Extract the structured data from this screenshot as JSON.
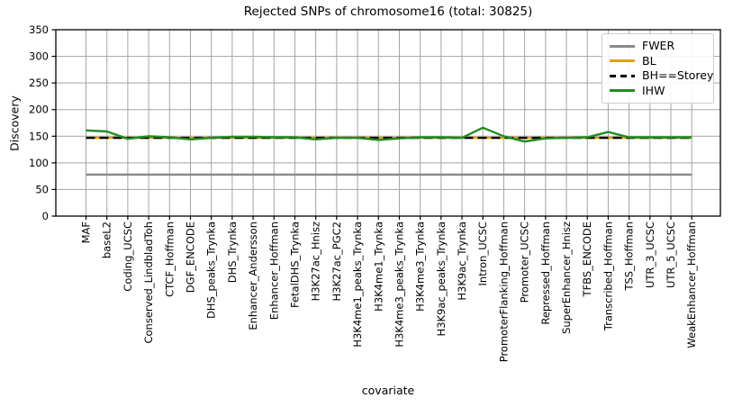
{
  "figure": {
    "background": "#ffffff",
    "grid_color": "#a4a4a4",
    "axis_color": "#000000"
  },
  "chart_data": {
    "type": "line",
    "title": "Rejected SNPs of chromosome16 (total: 30825)",
    "xlabel": "covariate",
    "ylabel": "Discovery",
    "ylim": [
      0,
      350
    ],
    "yticks": [
      0,
      50,
      100,
      150,
      200,
      250,
      300,
      350
    ],
    "grid": true,
    "legend_position": "upper right",
    "categories": [
      "MAF",
      "baseL2",
      "Coding_UCSC",
      "Conserved_LindbladToh",
      "CTCF_Hoffman",
      "DGF_ENCODE",
      "DHS_peaks_Trynka",
      "DHS_Trynka",
      "Enhancer_Andersson",
      "Enhancer_Hoffman",
      "FetalDHS_Trynka",
      "H3K27ac_Hnisz",
      "H3K27ac_PGC2",
      "H3K4me1_peaks_Trynka",
      "H3K4me1_Trynka",
      "H3K4me3_peaks_Trynka",
      "H3K4me3_Trynka",
      "H3K9ac_peaks_Trynka",
      "H3K9ac_Trynka",
      "Intron_UCSC",
      "PromoterFlanking_Hoffman",
      "Promoter_UCSC",
      "Repressed_Hoffman",
      "SuperEnhancer_Hnisz",
      "TFBS_ENCODE",
      "Transcribed_Hoffman",
      "TSS_Hoffman",
      "UTR_3_UCSC",
      "UTR_5_UCSC",
      "WeakEnhancer_Hoffman"
    ],
    "series": [
      {
        "name": "FWER",
        "color": "#888888",
        "style": "solid",
        "values": [
          78,
          78,
          78,
          78,
          78,
          78,
          78,
          78,
          78,
          78,
          78,
          78,
          78,
          78,
          78,
          78,
          78,
          78,
          78,
          78,
          78,
          78,
          78,
          78,
          78,
          78,
          78,
          78,
          78,
          78
        ]
      },
      {
        "name": "BL",
        "color": "#e2a10e",
        "style": "solid",
        "values": [
          147,
          147,
          147,
          147,
          147,
          147,
          147,
          147,
          147,
          147,
          147,
          147,
          147,
          147,
          147,
          147,
          147,
          147,
          147,
          147,
          147,
          147,
          147,
          147,
          147,
          147,
          147,
          147,
          147,
          147
        ]
      },
      {
        "name": "BH==Storey",
        "color": "#000000",
        "style": "dashed",
        "values": [
          147,
          147,
          147,
          147,
          147,
          147,
          147,
          147,
          147,
          147,
          147,
          147,
          147,
          147,
          147,
          147,
          147,
          147,
          147,
          147,
          147,
          147,
          147,
          147,
          147,
          147,
          147,
          147,
          147,
          147
        ]
      },
      {
        "name": "IHW",
        "color": "#228b22",
        "style": "solid",
        "values": [
          161,
          159,
          145,
          150,
          148,
          144,
          147,
          149,
          149,
          148,
          148,
          144,
          147,
          147,
          143,
          146,
          148,
          148,
          147,
          166,
          150,
          140,
          146,
          147,
          148,
          158,
          148,
          148,
          148,
          148
        ]
      }
    ]
  }
}
